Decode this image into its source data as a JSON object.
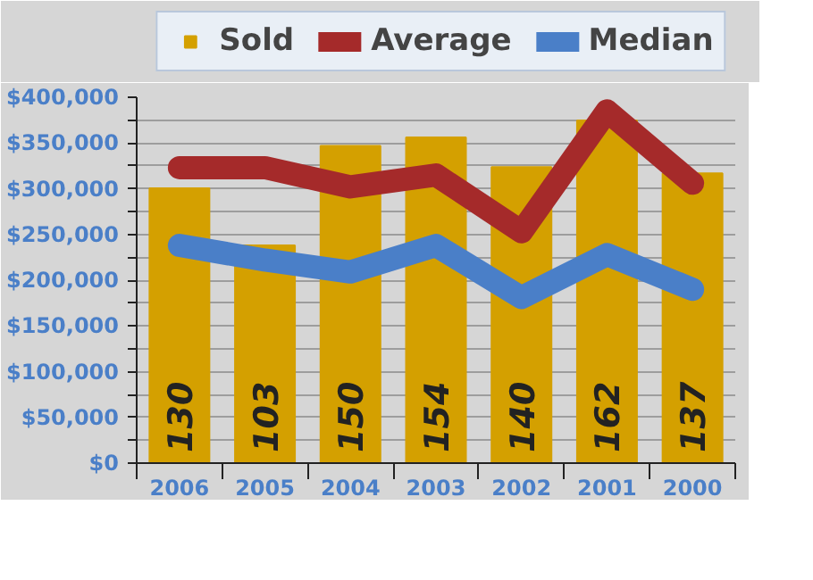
{
  "chart_data": {
    "type": "bar",
    "categories": [
      "2006",
      "2005",
      "2004",
      "2003",
      "2002",
      "2001",
      "2000"
    ],
    "series": [
      {
        "name": "Sold",
        "color": "#d4a000",
        "axis": "y2",
        "values": [
          130,
          103,
          150,
          154,
          140,
          162,
          137
        ],
        "value_labels": [
          "130",
          "103",
          "150",
          "154",
          "140",
          "162",
          "137"
        ]
      },
      {
        "name": "Average",
        "type": "line",
        "color": "#a52a2a",
        "values": [
          323000,
          323000,
          302000,
          315000,
          253000,
          385000,
          306000
        ]
      },
      {
        "name": "Median",
        "type": "line",
        "color": "#4a7fc8",
        "values": [
          238000,
          222000,
          209000,
          238000,
          181000,
          228000,
          190000
        ]
      }
    ],
    "ylim": [
      0,
      400000
    ],
    "yticks": [
      {
        "value": 0,
        "label": "$0"
      },
      {
        "value": 25000,
        "label": null
      },
      {
        "value": 50000,
        "label": "$50,000"
      },
      {
        "value": 75000,
        "label": null
      },
      {
        "value": 100000,
        "label": "$100,000"
      },
      {
        "value": 125000,
        "label": null
      },
      {
        "value": 150000,
        "label": "$150,000"
      },
      {
        "value": 175000,
        "label": null
      },
      {
        "value": 200000,
        "label": "$200,000"
      },
      {
        "value": 225000,
        "label": null
      },
      {
        "value": 250000,
        "label": "$250,000"
      },
      {
        "value": 275000,
        "label": null
      },
      {
        "value": 300000,
        "label": "$300,000"
      },
      {
        "value": 325000,
        "label": null
      },
      {
        "value": 350000,
        "label": "$350,000"
      },
      {
        "value": 375000,
        "label": null
      },
      {
        "value": 400000,
        "label": "$400,000"
      }
    ],
    "y2lim": [
      0,
      173
    ],
    "grid": "y",
    "legend": "top",
    "line_style": "solid"
  }
}
